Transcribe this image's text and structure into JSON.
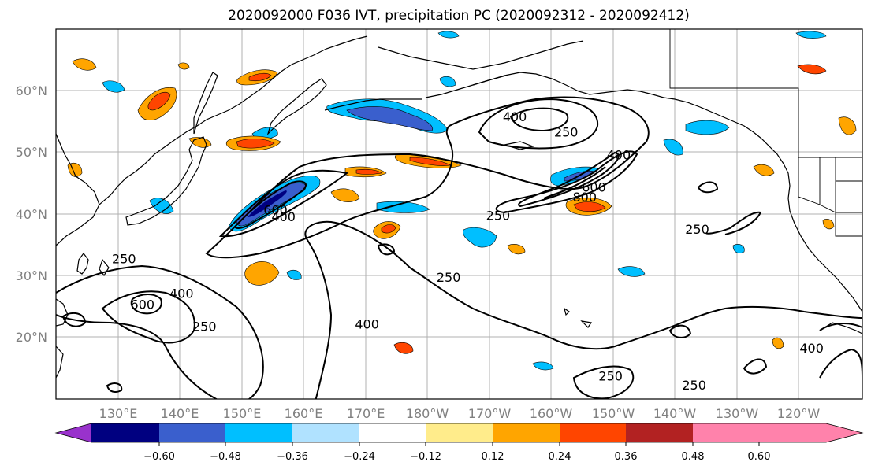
{
  "title": "2020092000 F036 IVT, precipitation PC (2020092312 - 2020092412)",
  "map": {
    "lat_labels": [
      "60°N",
      "50°N",
      "40°N",
      "30°N",
      "20°N"
    ],
    "lon_labels": [
      "130°E",
      "140°E",
      "150°E",
      "160°E",
      "170°E",
      "180°W",
      "170°W",
      "160°W",
      "150°W",
      "140°W",
      "130°W",
      "120°W"
    ],
    "contour_levels": [
      250,
      400,
      600,
      800
    ],
    "contour_labels": [
      {
        "text": "600",
        "lat": 39.9,
        "lon": 155.5
      },
      {
        "text": "400",
        "lat": 38.8,
        "lon": 156.8
      },
      {
        "text": "400",
        "lat": 55.0,
        "lon": -165.8
      },
      {
        "text": "250",
        "lat": 52.5,
        "lon": -157.5
      },
      {
        "text": "400",
        "lat": 48.8,
        "lon": -149.0
      },
      {
        "text": "600",
        "lat": 43.6,
        "lon": -153.0
      },
      {
        "text": "800",
        "lat": 42.0,
        "lon": -154.5
      },
      {
        "text": "250",
        "lat": 39.0,
        "lon": -168.5
      },
      {
        "text": "250",
        "lat": 36.8,
        "lon": -136.3
      },
      {
        "text": "250",
        "lat": 32.0,
        "lon": 131.0
      },
      {
        "text": "600",
        "lat": 24.6,
        "lon": 134.0
      },
      {
        "text": "400",
        "lat": 26.4,
        "lon": 140.3
      },
      {
        "text": "250",
        "lat": 21.0,
        "lon": 144.0
      },
      {
        "text": "400",
        "lat": 21.4,
        "lon": 170.3
      },
      {
        "text": "250",
        "lat": 29.0,
        "lon": -176.5
      },
      {
        "text": "250",
        "lat": 13.0,
        "lon": -150.3
      },
      {
        "text": "250",
        "lat": 11.5,
        "lon": -136.8
      },
      {
        "text": "400",
        "lat": 17.5,
        "lon": -117.8
      }
    ]
  },
  "colorbar": {
    "colors": [
      "#9932cc",
      "#000080",
      "#3a5fcd",
      "#00bfff",
      "#b0e2ff",
      "#ffffff",
      "#ffec8b",
      "#ffa500",
      "#ff4500",
      "#b22222",
      "#ff82ab"
    ],
    "ticks": [
      "−0.60",
      "−0.48",
      "−0.36",
      "−0.24",
      "−0.12",
      "0.12",
      "0.24",
      "0.36",
      "0.48",
      "0.60"
    ]
  }
}
